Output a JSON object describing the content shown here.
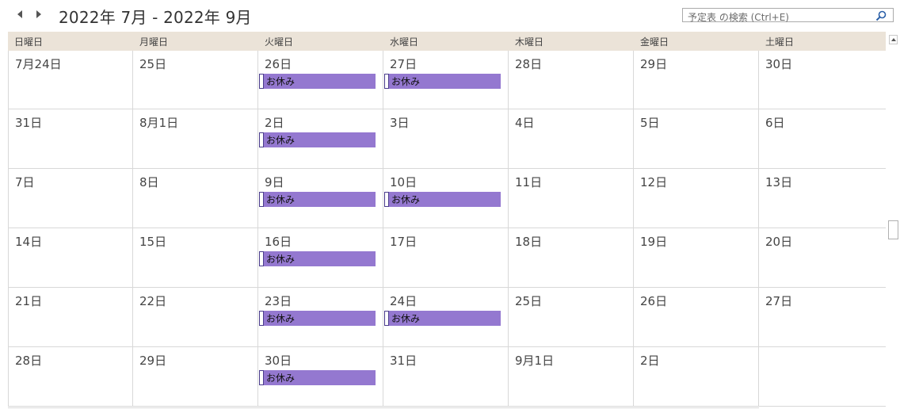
{
  "title": "2022年 7月 - 2022年 9月",
  "search": {
    "placeholder": "予定表 の検索 (Ctrl+E)"
  },
  "weekdays": [
    "日曜日",
    "月曜日",
    "火曜日",
    "水曜日",
    "木曜日",
    "金曜日",
    "土曜日"
  ],
  "weeks": [
    {
      "days": [
        "7月24日",
        "25日",
        "26日",
        "27日",
        "28日",
        "29日",
        "30日"
      ]
    },
    {
      "days": [
        "31日",
        "8月1日",
        "2日",
        "3日",
        "4日",
        "5日",
        "6日"
      ]
    },
    {
      "days": [
        "7日",
        "8日",
        "9日",
        "10日",
        "11日",
        "12日",
        "13日"
      ]
    },
    {
      "days": [
        "14日",
        "15日",
        "16日",
        "17日",
        "18日",
        "19日",
        "20日"
      ]
    },
    {
      "days": [
        "21日",
        "22日",
        "23日",
        "24日",
        "25日",
        "26日",
        "27日"
      ]
    },
    {
      "days": [
        "28日",
        "29日",
        "30日",
        "31日",
        "9月1日",
        "2日",
        ""
      ]
    }
  ],
  "events": [
    {
      "week": 0,
      "day": 2,
      "label": "お休み"
    },
    {
      "week": 0,
      "day": 3,
      "label": "お休み"
    },
    {
      "week": 1,
      "day": 2,
      "label": "お休み"
    },
    {
      "week": 2,
      "day": 2,
      "label": "お休み"
    },
    {
      "week": 2,
      "day": 3,
      "label": "お休み"
    },
    {
      "week": 3,
      "day": 2,
      "label": "お休み"
    },
    {
      "week": 4,
      "day": 2,
      "label": "お休み"
    },
    {
      "week": 4,
      "day": 3,
      "label": "お休み"
    },
    {
      "week": 5,
      "day": 2,
      "label": "お休み"
    }
  ],
  "colors": {
    "event": "#9478d0",
    "header": "#ebe3d8"
  }
}
